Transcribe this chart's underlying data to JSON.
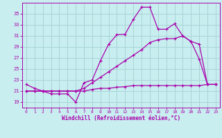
{
  "xlabel": "Windchill (Refroidissement éolien,°C)",
  "bg_color": "#c8eef0",
  "grid_color": "#aad4d8",
  "line_color": "#aa00aa",
  "x_ticks": [
    0,
    1,
    2,
    3,
    4,
    5,
    6,
    7,
    8,
    9,
    10,
    11,
    12,
    13,
    14,
    15,
    16,
    17,
    18,
    19,
    20,
    21,
    22,
    23
  ],
  "y_ticks": [
    19,
    21,
    23,
    25,
    27,
    29,
    31,
    33,
    35
  ],
  "ylim": [
    18.0,
    37.0
  ],
  "xlim": [
    -0.5,
    23.5
  ],
  "line1_x": [
    0,
    1,
    2,
    3,
    4,
    5,
    6,
    7,
    8,
    9,
    10,
    11,
    12,
    13,
    14,
    15,
    16,
    17,
    18,
    19,
    20,
    21,
    22,
    23
  ],
  "line1_y": [
    22.2,
    21.5,
    21.0,
    20.5,
    20.5,
    20.5,
    19.0,
    22.5,
    23.0,
    26.5,
    29.5,
    31.2,
    31.3,
    34.0,
    36.2,
    36.2,
    32.2,
    32.2,
    33.2,
    31.0,
    30.0,
    26.8,
    22.2,
    22.2
  ],
  "line2_x": [
    0,
    1,
    2,
    3,
    4,
    5,
    6,
    7,
    8,
    9,
    10,
    11,
    12,
    13,
    14,
    15,
    16,
    17,
    18,
    19,
    20,
    21,
    22,
    23
  ],
  "line2_y": [
    21.0,
    21.0,
    21.0,
    21.0,
    21.0,
    21.0,
    21.0,
    21.5,
    22.5,
    23.5,
    24.5,
    25.5,
    26.5,
    27.5,
    28.5,
    29.8,
    30.3,
    30.5,
    30.5,
    31.0,
    30.0,
    29.5,
    22.2,
    22.2
  ],
  "line3_x": [
    0,
    1,
    2,
    3,
    4,
    5,
    6,
    7,
    8,
    9,
    10,
    11,
    12,
    13,
    14,
    15,
    16,
    17,
    18,
    19,
    20,
    21,
    22,
    23
  ],
  "line3_y": [
    21.0,
    21.0,
    21.0,
    21.0,
    21.0,
    21.0,
    21.0,
    21.0,
    21.3,
    21.5,
    21.5,
    21.7,
    21.8,
    22.0,
    22.0,
    22.0,
    22.0,
    22.0,
    22.0,
    22.0,
    22.0,
    22.0,
    22.2,
    22.2
  ]
}
